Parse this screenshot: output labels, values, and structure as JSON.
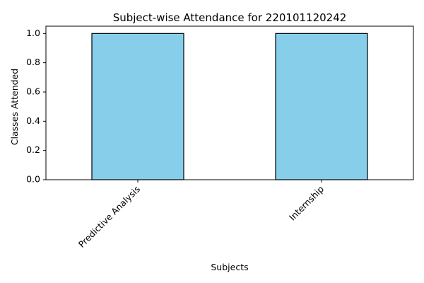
{
  "chart_data": {
    "type": "bar",
    "title": "Subject-wise Attendance for 220101120242",
    "xlabel": "Subjects",
    "ylabel": "Classes Attended",
    "categories": [
      "Predictive Analysis",
      "Internship"
    ],
    "values": [
      1.0,
      1.0
    ],
    "ylim": [
      0,
      1.05
    ],
    "yticks": [
      "0.0",
      "0.2",
      "0.4",
      "0.6",
      "0.8",
      "1.0"
    ],
    "bar_color": "#87ceeb",
    "bar_edge_color": "#000000",
    "grid": false,
    "legend": "none"
  }
}
